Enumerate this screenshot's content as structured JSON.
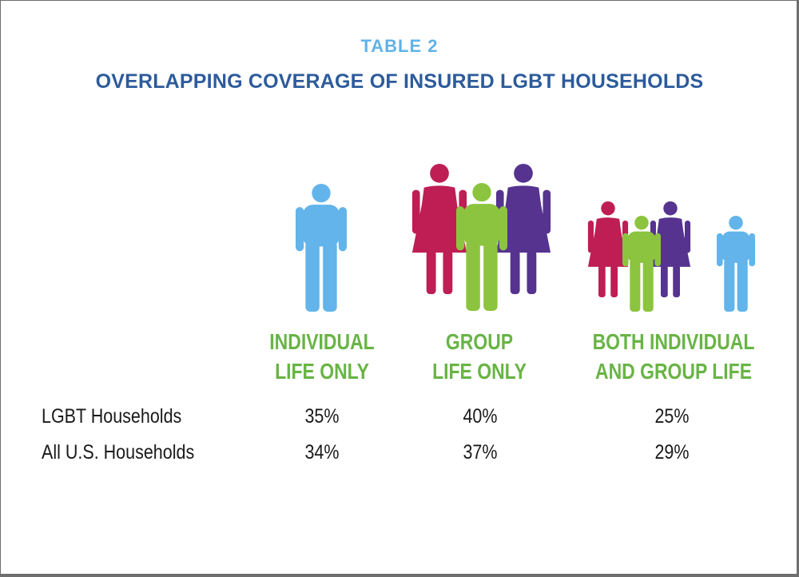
{
  "header": {
    "eyebrow": "TABLE 2",
    "title": "OVERLAPPING COVERAGE OF INSURED LGBT HOUSEHOLDS"
  },
  "colors": {
    "light_blue": "#62b4ea",
    "magenta": "#be1e54",
    "green": "#8cc43f",
    "purple": "#55338f",
    "category_green": "#68b445",
    "title_blue": "#2d5b9b"
  },
  "chart_data": {
    "type": "table",
    "columns": [
      {
        "line1": "INDIVIDUAL",
        "line2": "LIFE ONLY"
      },
      {
        "line1": "GROUP",
        "line2": "LIFE ONLY"
      },
      {
        "line1": "BOTH INDIVIDUAL",
        "line2": "AND GROUP LIFE"
      }
    ],
    "rows": [
      {
        "label": "LGBT Households",
        "values": [
          "35%",
          "40%",
          "25%"
        ]
      },
      {
        "label": "All U.S. Households",
        "values": [
          "34%",
          "37%",
          "29%"
        ]
      }
    ]
  }
}
